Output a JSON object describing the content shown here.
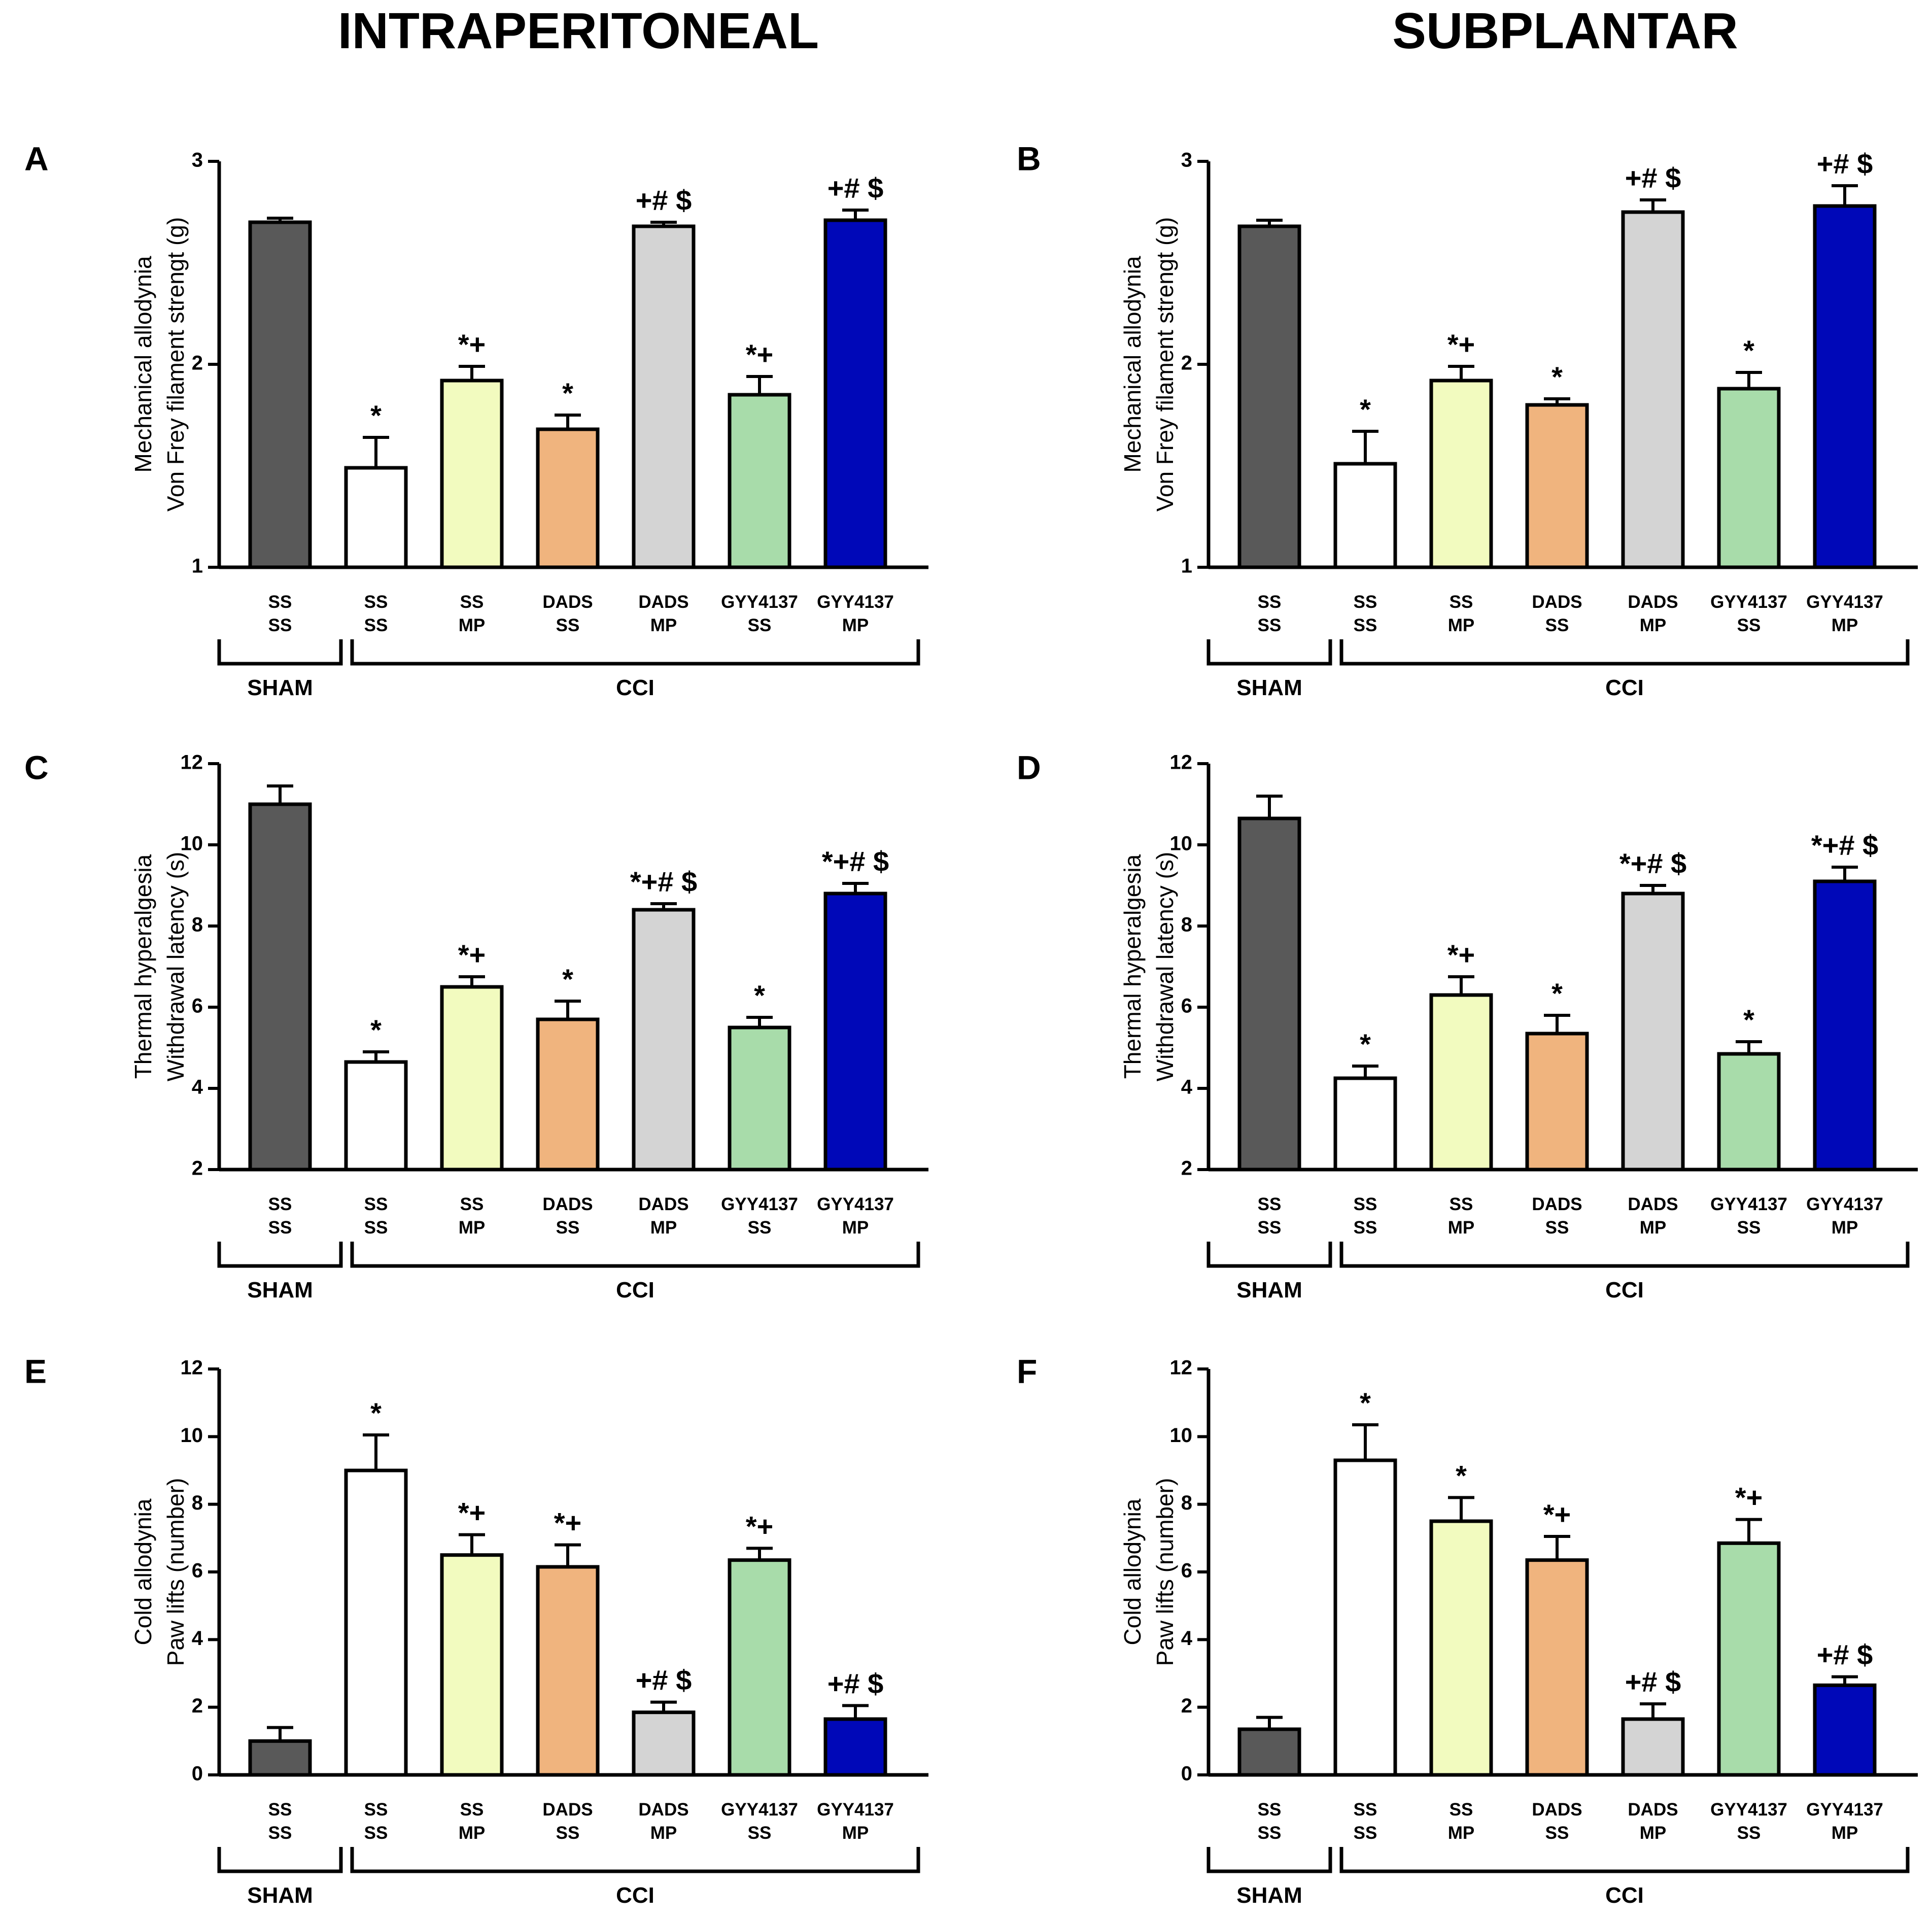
{
  "figure": {
    "column_titles": [
      "INTRAPERITONEAL",
      "SUBPLANTAR"
    ],
    "categories": [
      [
        "SS",
        "SS"
      ],
      [
        "SS",
        "SS"
      ],
      [
        "SS",
        "MP"
      ],
      [
        "DADS",
        "SS"
      ],
      [
        "DADS",
        "MP"
      ],
      [
        "GYY4137",
        "SS"
      ],
      [
        "GYY4137",
        "MP"
      ]
    ],
    "group_labels": [
      "SHAM",
      "CCI"
    ],
    "bar_colors": [
      "#595959",
      "#ffffff",
      "#f2fbbf",
      "#f0b47e",
      "#d4d4d4",
      "#a8dcaa",
      "#0008b8"
    ]
  },
  "chart_data": [
    {
      "type": "bar",
      "panel": "A",
      "column": "INTRAPERITONEAL",
      "ylabel": [
        "Mechanical allodynia",
        "Von Frey filament strengt (g)"
      ],
      "ylim": [
        1,
        3
      ],
      "yticks": [
        1,
        2,
        3
      ],
      "values": [
        2.7,
        1.49,
        1.92,
        1.68,
        2.68,
        1.85,
        2.71
      ],
      "errors": [
        0.02,
        0.15,
        0.07,
        0.07,
        0.02,
        0.09,
        0.05
      ],
      "significance": [
        "",
        "*",
        "*+",
        "*",
        "+# $",
        "*+",
        "+# $"
      ]
    },
    {
      "type": "bar",
      "panel": "B",
      "column": "SUBPLANTAR",
      "ylabel": [
        "Mechanical allodynia",
        "Von Frey filament strengt (g)"
      ],
      "ylim": [
        1,
        3
      ],
      "yticks": [
        1,
        2,
        3
      ],
      "values": [
        2.68,
        1.51,
        1.92,
        1.8,
        2.75,
        1.88,
        2.78
      ],
      "errors": [
        0.03,
        0.16,
        0.07,
        0.03,
        0.06,
        0.08,
        0.1
      ],
      "significance": [
        "",
        "*",
        "*+",
        "*",
        "+# $",
        "*",
        "+# $"
      ]
    },
    {
      "type": "bar",
      "panel": "C",
      "column": "INTRAPERITONEAL",
      "ylabel": [
        "Thermal hyperalgesia",
        "Withdrawal latency (s)"
      ],
      "ylim": [
        2,
        12
      ],
      "yticks": [
        2,
        4,
        6,
        8,
        10,
        12
      ],
      "values": [
        11.0,
        4.65,
        6.5,
        5.7,
        8.4,
        5.5,
        8.8
      ],
      "errors": [
        0.45,
        0.25,
        0.25,
        0.45,
        0.15,
        0.25,
        0.25
      ],
      "significance": [
        "",
        "*",
        "*+",
        "*",
        "*+# $",
        "*",
        "*+# $"
      ]
    },
    {
      "type": "bar",
      "panel": "D",
      "column": "SUBPLANTAR",
      "ylabel": [
        "Thermal hyperalgesia",
        "Withdrawal latency (s)"
      ],
      "ylim": [
        2,
        12
      ],
      "yticks": [
        2,
        4,
        6,
        8,
        10,
        12
      ],
      "values": [
        10.65,
        4.25,
        6.3,
        5.35,
        8.8,
        4.85,
        9.1
      ],
      "errors": [
        0.55,
        0.3,
        0.45,
        0.45,
        0.2,
        0.3,
        0.35
      ],
      "significance": [
        "",
        "*",
        "*+",
        "*",
        "*+# $",
        "*",
        "*+# $"
      ]
    },
    {
      "type": "bar",
      "panel": "E",
      "column": "INTRAPERITONEAL",
      "ylabel": [
        "Cold allodynia",
        "Paw lifts (number)"
      ],
      "ylim": [
        0,
        12
      ],
      "yticks": [
        0,
        2,
        4,
        6,
        8,
        10,
        12
      ],
      "values": [
        1.0,
        9.0,
        6.5,
        6.15,
        1.85,
        6.35,
        1.65
      ],
      "errors": [
        0.4,
        1.05,
        0.6,
        0.65,
        0.3,
        0.35,
        0.4
      ],
      "significance": [
        "",
        "*",
        "*+",
        "*+",
        "+# $",
        "*+",
        "+# $"
      ]
    },
    {
      "type": "bar",
      "panel": "F",
      "column": "SUBPLANTAR",
      "ylabel": [
        "Cold allodynia",
        "Paw lifts (number)"
      ],
      "ylim": [
        0,
        12
      ],
      "yticks": [
        0,
        2,
        4,
        6,
        8,
        10,
        12
      ],
      "values": [
        1.35,
        9.3,
        7.5,
        6.35,
        1.65,
        6.85,
        2.65
      ],
      "errors": [
        0.35,
        1.05,
        0.7,
        0.7,
        0.45,
        0.7,
        0.25
      ],
      "significance": [
        "",
        "*",
        "*",
        "*+",
        "+# $",
        "*+",
        "+# $"
      ]
    }
  ]
}
